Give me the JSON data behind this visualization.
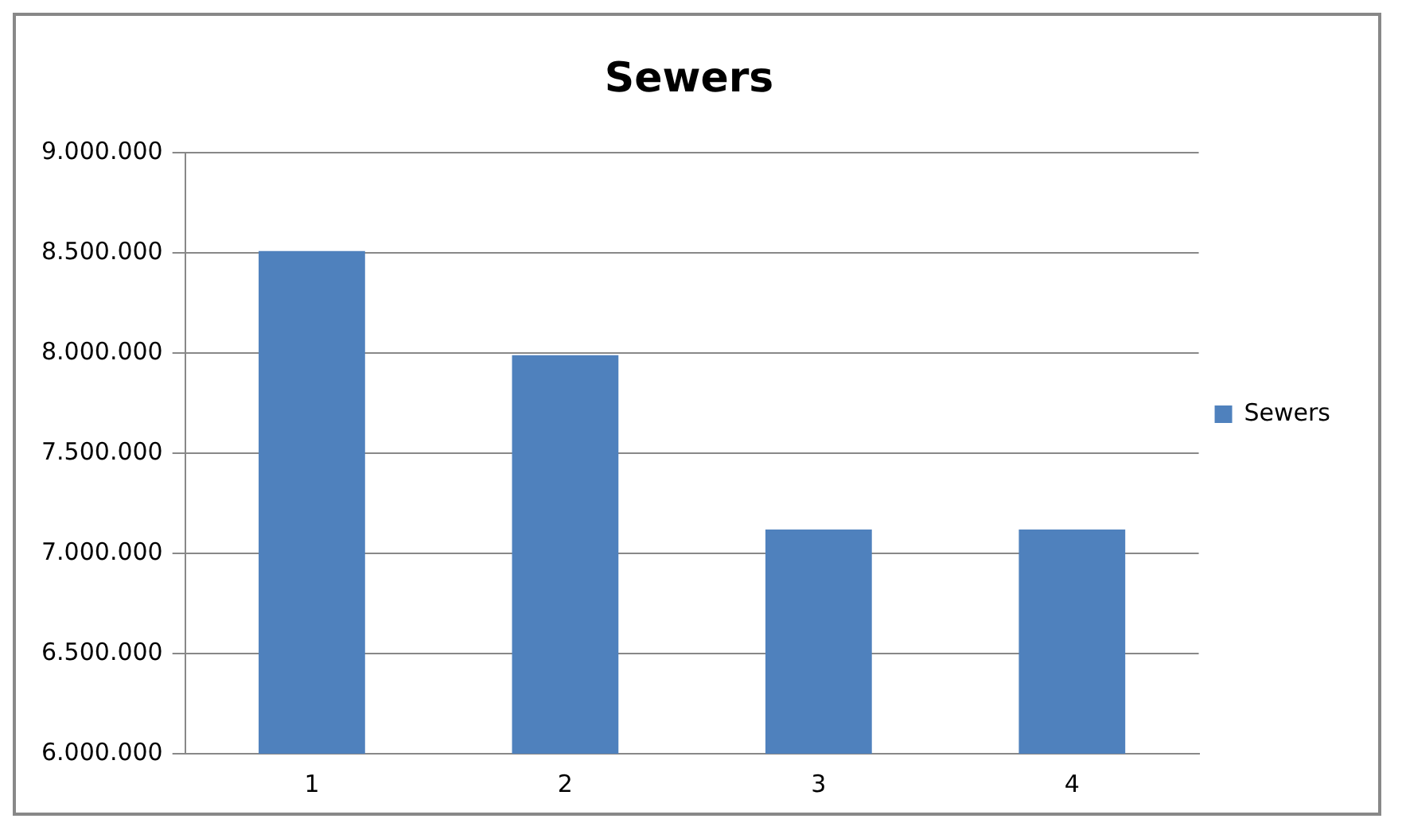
{
  "chart_data": {
    "type": "bar",
    "title": "Sewers",
    "categories": [
      "1",
      "2",
      "3",
      "4"
    ],
    "series": [
      {
        "name": "Sewers",
        "color": "#4f81bd",
        "values": [
          8510000,
          7990000,
          7120000,
          7120000
        ]
      }
    ],
    "ylim": [
      6000000,
      9000000
    ],
    "yticks": [
      {
        "value": 6000000,
        "label": "6.000.000"
      },
      {
        "value": 6500000,
        "label": "6.500.000"
      },
      {
        "value": 7000000,
        "label": "7.000.000"
      },
      {
        "value": 7500000,
        "label": "7.500.000"
      },
      {
        "value": 8000000,
        "label": "8.000.000"
      },
      {
        "value": 8500000,
        "label": "8.500.000"
      },
      {
        "value": 9000000,
        "label": "9.000.000"
      }
    ],
    "grid": "y",
    "legend": "right"
  }
}
